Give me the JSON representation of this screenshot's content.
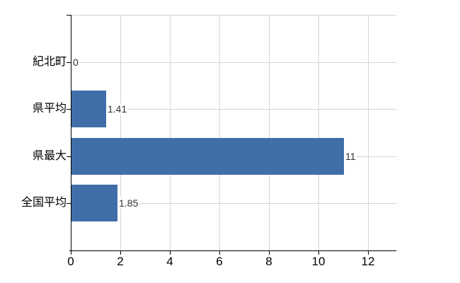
{
  "chart": {
    "title": "",
    "bar_color": "#3f6ea9",
    "grid_color": "#d4d4d4",
    "axis_color": "#000000",
    "label_color": "#000000",
    "value_label_color": "#333333",
    "background_color": "#ffffff"
  },
  "chart_data": {
    "type": "bar",
    "orientation": "horizontal",
    "title": "",
    "xlabel": "",
    "ylabel": "",
    "categories": [
      "紀北町",
      "県平均",
      "県最大",
      "全国平均"
    ],
    "values": [
      0,
      1.41,
      11,
      1.85
    ],
    "value_labels": [
      "0",
      "1.41",
      "11",
      "1.85"
    ],
    "x_ticks": [
      0,
      2,
      4,
      6,
      8,
      10,
      12
    ],
    "x_tick_labels": [
      "0",
      "2",
      "4",
      "6",
      "8",
      "10",
      "12"
    ],
    "xlim": [
      0,
      13.14
    ],
    "grid": true,
    "legend": false
  }
}
